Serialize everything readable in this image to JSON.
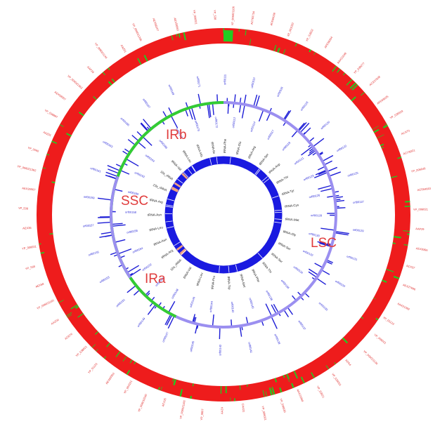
{
  "regions": [
    {
      "key": "irb",
      "label": "IRb",
      "color": "#e03c3c"
    },
    {
      "key": "ssc",
      "label": "SSC",
      "color": "#e03c3c"
    },
    {
      "key": "ira",
      "label": "IRa",
      "color": "#e03c3c"
    },
    {
      "key": "lsc",
      "label": "LSC",
      "color": "#e03c3c"
    }
  ],
  "colors": {
    "outer_ring": "#ee1c1c",
    "outer_marks": "#22cc22",
    "mid_ring_lsc": "#9b8ff0",
    "mid_ring_ir": "#33cc33",
    "mid_marks": "#1d1dd6",
    "inner_ring": "#1a1ae0",
    "inner_marks": "#f0a080",
    "outer_labels": "#e03030",
    "mid_labels": "#2a2ad8",
    "inner_labels": "#222222"
  },
  "outer_labels": [
    "YP_006021106",
    "ACT83734",
    "AFE69038",
    "XP_001020",
    "YP_S3822",
    "AFE58334",
    "AAX21049",
    "YP_039277",
    "ACX37608",
    "AFE69025",
    "YP_538929",
    "ACX70",
    "ACI78321",
    "YP_006049",
    "ACS04663",
    "YP_006021",
    "AAF29",
    "AEX8396",
    "ACX37",
    "AEX27696",
    "AAX21082",
    "YP_01123",
    "YP_006021",
    "YP_006021136",
    "ADS4",
    "YP_539051",
    "YP_S3921",
    "AAX21064",
    "YP_538930",
    "YP_006021",
    "CAA31",
    "AAZ4",
    "YP_0097",
    "YP_006021160",
    "AEX35",
    "YP_006019340",
    "YP_003121",
    "AEX69383",
    "YP_01123",
    "YP_538921",
    "ACB76",
    "AAZ04",
    "YP_006021161",
    "AEX58",
    "YP_538",
    "YP_006021",
    "AEX36",
    "YP_538",
    "AEX35567",
    "YP_006021362",
    "YP_0060",
    "AAZ01",
    "YP_538887",
    "AEX58307",
    "YP_006021362",
    "AAP29",
    "YP_006021144",
    "AAZ01",
    "YP_006021336",
    "AEX58347",
    "AEX58963",
    "YP_006021",
    "YP_538"
  ],
  "mid_labels": [
    "orf00111",
    "orf00112",
    "orf00113",
    "orf00114",
    "orf00116",
    "orf00117",
    "orf00118",
    "orf00119",
    "orf00120",
    "orf00121",
    "orf00122",
    "orf00123",
    "orf00125",
    "orf00126",
    "orf00127",
    "orf00128",
    "orf00129",
    "orf00130",
    "orf00131",
    "orf00132",
    "orf00133",
    "orf00134",
    "orf00135",
    "orf00136",
    "orf00137",
    "orf00138",
    "orf00139",
    "orf00140",
    "orf00141",
    "orf00142",
    "orf00143",
    "orf00144",
    "orf00145",
    "orf00146",
    "orf00147",
    "orf00148",
    "orf00149",
    "orf00150",
    "orf00151",
    "orf00152",
    "orf00153",
    "orf00154",
    "orf00155",
    "orf00156",
    "orf00157",
    "orf00158",
    "orf00159",
    "orf00160",
    "orf00161",
    "orf00162",
    "orf00163",
    "orf00164",
    "orf00165",
    "orf00166",
    "orf00167",
    "orf00168",
    "orf00169",
    "orf00170",
    "orf00171",
    "orf00172"
  ],
  "inner_labels": [
    "tRNA-Phe",
    "tRNA-Glu",
    "tRNA-Arg",
    "tRNA-Ser",
    "tRNA-Asp",
    "tRNA-Thr",
    "tRNA-Tyr",
    "tRNA-Cys",
    "tRNA-Met",
    "tRNA-Gly",
    "tRNA-Ser",
    "tRNA-Ser",
    "tRNA-Thr",
    "tRNA-Phe",
    "tRNA-Met",
    "tRNA-Trp",
    "tRNA-Pro",
    "tRNA-Leu",
    "tRNA-Val",
    "16s_rRNA",
    "tRNA-Arg",
    "tRNA-Asn",
    "tRNA-Leu",
    "tRNA-Asn",
    "tRNA-Arg",
    "23s_rRNA",
    "16s_rRNA",
    "tRNA-Val",
    "tRNA-Leu",
    "tRNA-His",
    "tRNA-Ile"
  ]
}
